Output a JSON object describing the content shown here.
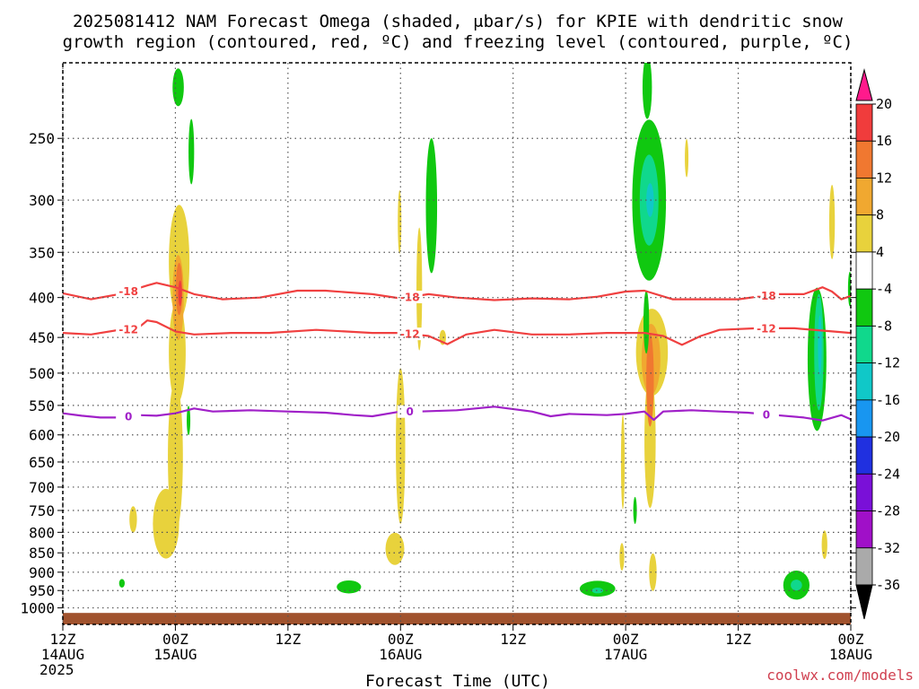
{
  "chart_data": {
    "type": "heatmap",
    "title_line1": "2025081412 NAM Forecast Omega (shaded, μbar/s) for KPIE with dendritic snow",
    "title_line2": "growth region (contoured, red, ºC) and freezing level (contoured, purple, ºC)",
    "xlabel": "Forecast Time (UTC)",
    "credit": "coolwx.com/models",
    "x_ticks": [
      {
        "hour": 0,
        "line1": "12Z",
        "line2": "14AUG",
        "line3": "2025"
      },
      {
        "hour": 12,
        "line1": "00Z",
        "line2": "15AUG",
        "line3": ""
      },
      {
        "hour": 24,
        "line1": "12Z",
        "line2": "",
        "line3": ""
      },
      {
        "hour": 36,
        "line1": "00Z",
        "line2": "16AUG",
        "line3": ""
      },
      {
        "hour": 48,
        "line1": "12Z",
        "line2": "",
        "line3": ""
      },
      {
        "hour": 60,
        "line1": "00Z",
        "line2": "17AUG",
        "line3": ""
      },
      {
        "hour": 72,
        "line1": "12Z",
        "line2": "",
        "line3": ""
      },
      {
        "hour": 84,
        "line1": "00Z",
        "line2": "18AUG",
        "line3": ""
      }
    ],
    "x_range_hours": [
      0,
      84
    ],
    "y_scale": "log",
    "y_range_hpa": [
      1050,
      200
    ],
    "y_ticks": [
      "250",
      "300",
      "350",
      "400",
      "450",
      "500",
      "550",
      "600",
      "650",
      "700",
      "750",
      "800",
      "850",
      "900",
      "950",
      "1000"
    ],
    "grid": true,
    "colorbar": {
      "position": "right",
      "labels": [
        "20",
        "16",
        "12",
        "8",
        "4",
        "-4",
        "-8",
        "-12",
        "-16",
        "-20",
        "-24",
        "-28",
        "-32",
        "-36"
      ],
      "colors": [
        "#ff1a8c",
        "#f03c3c",
        "#f07830",
        "#f0a830",
        "#e8d23c",
        "#ffffff",
        "#10c810",
        "#10d88c",
        "#10c8c8",
        "#1896f0",
        "#2030e0",
        "#7a10d8",
        "#a010c8",
        "#aaaaaa",
        "#000000"
      ]
    },
    "contours": [
      {
        "label": "-18",
        "color": "#f04040",
        "points": [
          [
            0,
            395
          ],
          [
            3,
            402
          ],
          [
            6,
            396
          ],
          [
            9,
            386
          ],
          [
            10,
            383
          ],
          [
            12,
            388
          ],
          [
            14,
            396
          ],
          [
            17,
            402
          ],
          [
            21,
            400
          ],
          [
            25,
            392
          ],
          [
            28,
            392
          ],
          [
            33,
            396
          ],
          [
            36,
            401
          ],
          [
            39,
            396
          ],
          [
            42,
            400
          ],
          [
            46,
            403
          ],
          [
            50,
            401
          ],
          [
            54,
            402
          ],
          [
            57,
            399
          ],
          [
            60,
            393
          ],
          [
            62,
            392
          ],
          [
            65,
            402
          ],
          [
            68,
            402
          ],
          [
            72,
            402
          ],
          [
            76,
            396
          ],
          [
            79,
            396
          ],
          [
            81,
            388
          ],
          [
            82,
            393
          ],
          [
            83,
            402
          ],
          [
            84,
            398
          ]
        ]
      },
      {
        "label": "-12",
        "color": "#f04040",
        "points": [
          [
            0,
            444
          ],
          [
            3,
            446
          ],
          [
            6,
            440
          ],
          [
            8,
            438
          ],
          [
            9,
            428
          ],
          [
            10,
            430
          ],
          [
            12,
            442
          ],
          [
            14,
            446
          ],
          [
            18,
            444
          ],
          [
            22,
            444
          ],
          [
            27,
            440
          ],
          [
            30,
            442
          ],
          [
            33,
            444
          ],
          [
            36,
            444
          ],
          [
            39,
            448
          ],
          [
            41,
            459
          ],
          [
            43,
            446
          ],
          [
            46,
            440
          ],
          [
            50,
            446
          ],
          [
            54,
            446
          ],
          [
            58,
            444
          ],
          [
            60,
            444
          ],
          [
            62,
            444
          ],
          [
            64,
            448
          ],
          [
            66,
            460
          ],
          [
            68,
            448
          ],
          [
            70,
            440
          ],
          [
            74,
            438
          ],
          [
            78,
            438
          ],
          [
            82,
            442
          ],
          [
            84,
            444
          ]
        ]
      },
      {
        "label": "0",
        "color": "#a020c8",
        "points": [
          [
            0,
            563
          ],
          [
            2,
            567
          ],
          [
            4,
            570
          ],
          [
            6,
            570
          ],
          [
            8,
            566
          ],
          [
            10,
            567
          ],
          [
            12,
            563
          ],
          [
            14,
            555
          ],
          [
            16,
            560
          ],
          [
            20,
            558
          ],
          [
            24,
            560
          ],
          [
            28,
            562
          ],
          [
            31,
            566
          ],
          [
            33,
            568
          ],
          [
            36,
            560
          ],
          [
            38,
            560
          ],
          [
            42,
            558
          ],
          [
            46,
            552
          ],
          [
            50,
            560
          ],
          [
            52,
            568
          ],
          [
            54,
            564
          ],
          [
            58,
            566
          ],
          [
            60,
            564
          ],
          [
            62,
            560
          ],
          [
            63,
            574
          ],
          [
            64,
            560
          ],
          [
            67,
            558
          ],
          [
            70,
            560
          ],
          [
            73,
            562
          ],
          [
            76,
            566
          ],
          [
            79,
            570
          ],
          [
            81,
            575
          ],
          [
            83,
            566
          ],
          [
            84,
            573
          ]
        ]
      }
    ],
    "shaded_regions": [
      {
        "value": 6,
        "color": "#e8d23c",
        "cx": 12.4,
        "p": 360,
        "w": 1.1,
        "dp": 60
      },
      {
        "value": 6,
        "color": "#e8d23c",
        "cx": 12.2,
        "p": 470,
        "w": 0.9,
        "dp": 70
      },
      {
        "value": 6,
        "color": "#e8d23c",
        "cx": 12.0,
        "p": 640,
        "w": 0.8,
        "dp": 140
      },
      {
        "value": 6,
        "color": "#e8d23c",
        "cx": 11.0,
        "p": 780,
        "w": 1.4,
        "dp": 80
      },
      {
        "value": 6,
        "color": "#e8d23c",
        "cx": 7.5,
        "p": 770,
        "w": 0.4,
        "dp": 30
      },
      {
        "value": 10,
        "color": "#f0a830",
        "cx": 12.3,
        "p": 400,
        "w": 0.6,
        "dp": 50
      },
      {
        "value": 14,
        "color": "#f07830",
        "cx": 12.4,
        "p": 390,
        "w": 0.35,
        "dp": 30
      },
      {
        "value": 18,
        "color": "#f03c3c",
        "cx": 12.5,
        "p": 395,
        "w": 0.15,
        "dp": 15
      },
      {
        "value": -6,
        "color": "#10c810",
        "cx": 12.3,
        "p": 215,
        "w": 0.6,
        "dp": 12
      },
      {
        "value": -6,
        "color": "#10c810",
        "cx": 13.7,
        "p": 260,
        "w": 0.3,
        "dp": 25
      },
      {
        "value": -6,
        "color": "#10c810",
        "cx": 13.4,
        "p": 575,
        "w": 0.15,
        "dp": 25
      },
      {
        "value": -6,
        "color": "#10c810",
        "cx": 6.3,
        "p": 930,
        "w": 0.3,
        "dp": 12
      },
      {
        "value": 6,
        "color": "#e8d23c",
        "cx": 35.9,
        "p": 320,
        "w": 0.15,
        "dp": 30
      },
      {
        "value": -6,
        "color": "#10c810",
        "cx": 39.3,
        "p": 305,
        "w": 0.6,
        "dp": 60
      },
      {
        "value": 6,
        "color": "#e8d23c",
        "cx": 38.0,
        "p": 390,
        "w": 0.3,
        "dp": 70
      },
      {
        "value": 6,
        "color": "#e8d23c",
        "cx": 40.5,
        "p": 450,
        "w": 0.35,
        "dp": 10
      },
      {
        "value": 6,
        "color": "#e8d23c",
        "cx": 36.0,
        "p": 620,
        "w": 0.5,
        "dp": 140
      },
      {
        "value": 6,
        "color": "#e8d23c",
        "cx": 35.4,
        "p": 840,
        "w": 1.0,
        "dp": 40
      },
      {
        "value": -6,
        "color": "#10c810",
        "cx": 30.5,
        "p": 940,
        "w": 1.3,
        "dp": 18
      },
      {
        "value": -6,
        "color": "#10c810",
        "cx": 62.5,
        "p": 300,
        "w": 1.8,
        "dp": 70
      },
      {
        "value": -12,
        "color": "#10d88c",
        "cx": 62.5,
        "p": 300,
        "w": 1.0,
        "dp": 40
      },
      {
        "value": -16,
        "color": "#10c8c8",
        "cx": 62.6,
        "p": 300,
        "w": 0.4,
        "dp": 15
      },
      {
        "value": -6,
        "color": "#10c810",
        "cx": 62.3,
        "p": 215,
        "w": 0.5,
        "dp": 20
      },
      {
        "value": 6,
        "color": "#e8d23c",
        "cx": 62.8,
        "p": 470,
        "w": 1.7,
        "dp": 60
      },
      {
        "value": 6,
        "color": "#e8d23c",
        "cx": 62.6,
        "p": 610,
        "w": 0.6,
        "dp": 120
      },
      {
        "value": 10,
        "color": "#f0a830",
        "cx": 62.7,
        "p": 480,
        "w": 1.0,
        "dp": 50
      },
      {
        "value": 14,
        "color": "#f07830",
        "cx": 62.6,
        "p": 510,
        "w": 0.4,
        "dp": 70
      },
      {
        "value": 6,
        "color": "#e8d23c",
        "cx": 62.9,
        "p": 900,
        "w": 0.4,
        "dp": 50
      },
      {
        "value": -6,
        "color": "#10c810",
        "cx": 62.2,
        "p": 430,
        "w": 0.3,
        "dp": 40
      },
      {
        "value": 6,
        "color": "#e8d23c",
        "cx": 59.7,
        "p": 650,
        "w": 0.2,
        "dp": 90
      },
      {
        "value": 6,
        "color": "#e8d23c",
        "cx": 59.6,
        "p": 860,
        "w": 0.25,
        "dp": 35
      },
      {
        "value": -6,
        "color": "#10c810",
        "cx": 61.0,
        "p": 750,
        "w": 0.1,
        "dp": 30
      },
      {
        "value": -6,
        "color": "#10c810",
        "cx": 57.0,
        "p": 945,
        "w": 1.9,
        "dp": 22
      },
      {
        "value": -12,
        "color": "#10d88c",
        "cx": 57.0,
        "p": 950,
        "w": 0.6,
        "dp": 8
      },
      {
        "value": 6,
        "color": "#e8d23c",
        "cx": 66.5,
        "p": 265,
        "w": 0.1,
        "dp": 15
      },
      {
        "value": -6,
        "color": "#10c810",
        "cx": 80.4,
        "p": 480,
        "w": 1.0,
        "dp": 100
      },
      {
        "value": -12,
        "color": "#10d88c",
        "cx": 80.6,
        "p": 470,
        "w": 0.5,
        "dp": 80
      },
      {
        "value": -16,
        "color": "#10c8c8",
        "cx": 80.7,
        "p": 460,
        "w": 0.2,
        "dp": 40
      },
      {
        "value": 6,
        "color": "#e8d23c",
        "cx": 82.0,
        "p": 320,
        "w": 0.3,
        "dp": 35
      },
      {
        "value": 6,
        "color": "#e8d23c",
        "cx": 81.2,
        "p": 830,
        "w": 0.3,
        "dp": 35
      },
      {
        "value": -6,
        "color": "#10c810",
        "cx": 78.2,
        "p": 935,
        "w": 1.4,
        "dp": 40
      },
      {
        "value": -12,
        "color": "#10d88c",
        "cx": 78.2,
        "p": 935,
        "w": 0.6,
        "dp": 15
      },
      {
        "value": -6,
        "color": "#10c810",
        "cx": 83.9,
        "p": 390,
        "w": 0.2,
        "dp": 20
      }
    ],
    "ground_color": "#a0522d",
    "ground_top_hpa": 1015
  }
}
